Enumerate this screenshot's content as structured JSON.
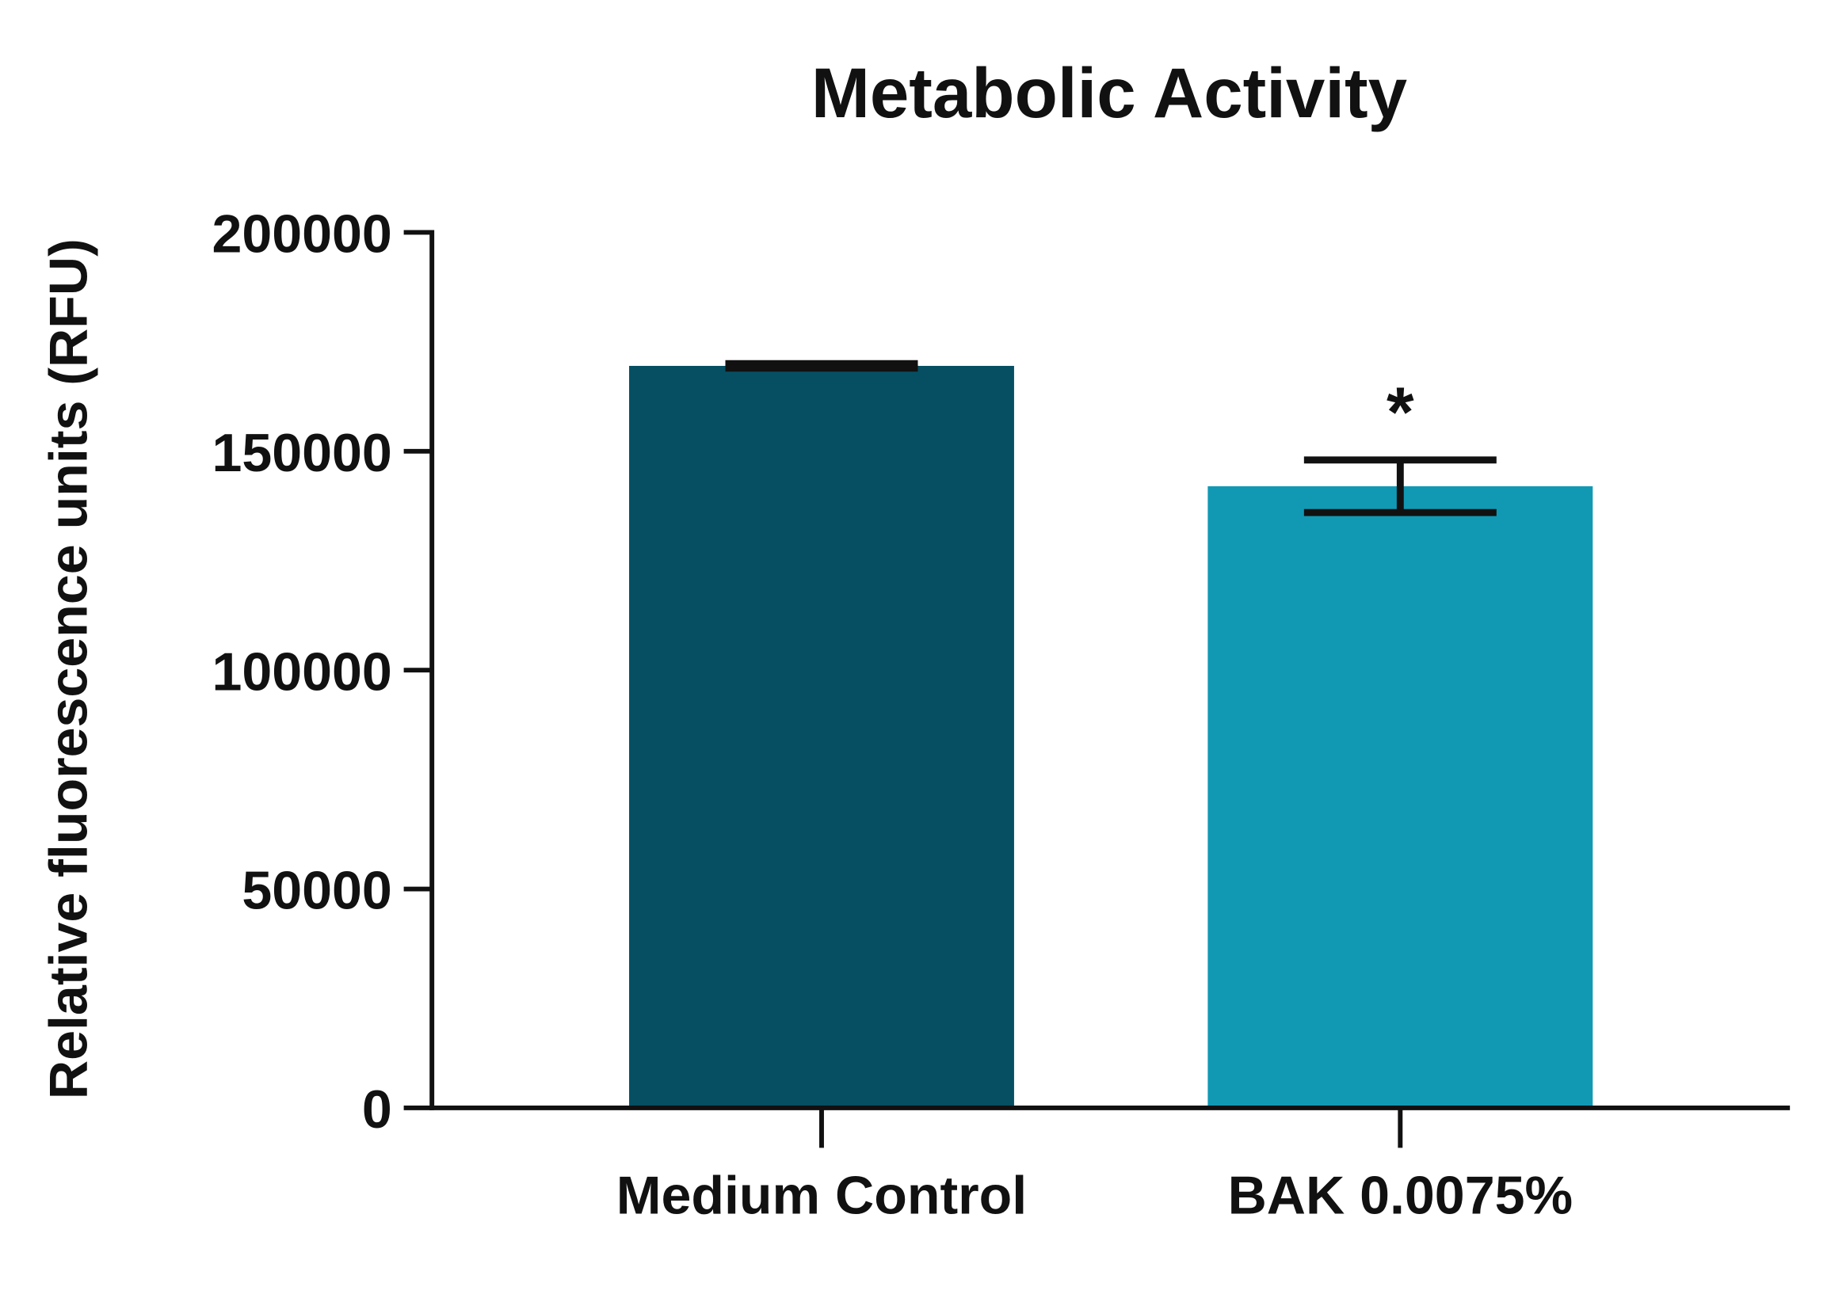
{
  "chart_data": {
    "type": "bar",
    "title": "Metabolic Activity",
    "xlabel": "",
    "ylabel": "Relative fluorescence units (RFU)",
    "ylim": [
      0,
      200000
    ],
    "yticks": [
      0,
      50000,
      100000,
      150000,
      200000
    ],
    "ytick_labels": [
      "0",
      "50000",
      "100000",
      "150000",
      "200000"
    ],
    "categories": [
      "Medium Control",
      "BAK 0.0075%"
    ],
    "values": [
      169500,
      142000
    ],
    "errors": [
      500,
      6000
    ],
    "colors": [
      "#064f63",
      "#1199b4"
    ],
    "annotations": [
      "",
      "*"
    ],
    "grid": false,
    "legend": "none"
  }
}
